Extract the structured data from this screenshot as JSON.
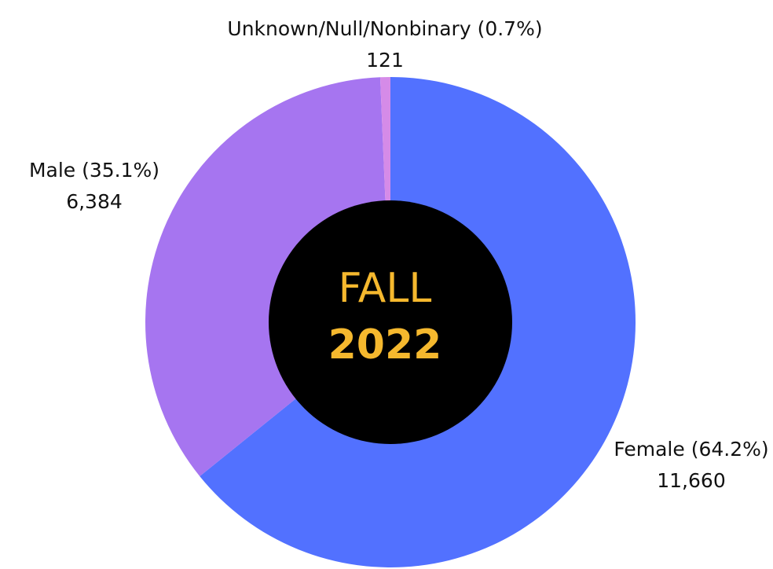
{
  "chart_data": {
    "type": "donut",
    "categories": [
      "Female",
      "Male",
      "Unknown/Null/Nonbinary"
    ],
    "percent_labels": [
      "(64.2%)",
      "(35.1%)",
      "(0.7%)"
    ],
    "values": [
      11660,
      6384,
      121
    ],
    "value_labels": [
      "11,660",
      "6,384",
      "121"
    ],
    "colors": [
      "#5271ff",
      "#a675f0",
      "#d58be8"
    ],
    "center_text": [
      "FALL",
      "2022"
    ]
  }
}
